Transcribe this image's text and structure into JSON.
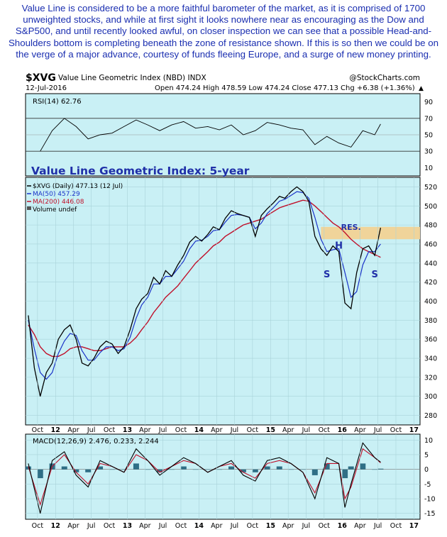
{
  "commentary": "Value Line is considered to be a more faithful barometer of the market, as it is comprised of 1700 unweighted stocks, and while at first sight it looks nowhere near as encouraging as the Dow and S&P500, and until recently looked awful, on closer inspection we can see that a possible Head-and-Shoulders bottom is completing beneath the zone of resistance shown. If this is so then we could be on the verge of a major advance, courtesy of funds fleeing Europe, and a surge of new money printing.",
  "header": {
    "symbol": "$XVG",
    "name": "Value Line Geometric Index (NBD) INDX",
    "credit": "@StockCharts.com",
    "date": "12-Jul-2016",
    "ohlc": "Open 474.24  High 478.59  Low 474.24  Close 477.13  Chg +6.38 (+1.36%)",
    "change_arrow": "▲"
  },
  "colors": {
    "panel_bg": "#c9f0f5",
    "price": "#000000",
    "ma50": "#1a32c8",
    "ma200": "#c0102a",
    "resistance_zone": "#f0d49a",
    "annotation": "#1f2fa8",
    "macd_hist": "#2f6f86"
  },
  "chart_data": [
    {
      "type": "line",
      "label": "RSI(14) 62.76",
      "ylim": [
        0,
        100
      ],
      "yticks": [
        10,
        30,
        50,
        70,
        90
      ],
      "reference_lines": [
        30,
        50,
        70
      ],
      "x": [
        "2011-10",
        "2011-12",
        "2012-02",
        "2012-04",
        "2012-06",
        "2012-08",
        "2012-10",
        "2012-12",
        "2013-02",
        "2013-04",
        "2013-06",
        "2013-08",
        "2013-10",
        "2013-12",
        "2014-02",
        "2014-04",
        "2014-06",
        "2014-08",
        "2014-10",
        "2014-12",
        "2015-02",
        "2015-04",
        "2015-06",
        "2015-08",
        "2015-10",
        "2015-12",
        "2016-02",
        "2016-04",
        "2016-06",
        "2016-07"
      ],
      "values": [
        30,
        55,
        70,
        60,
        45,
        50,
        52,
        60,
        68,
        62,
        55,
        62,
        66,
        58,
        60,
        56,
        62,
        50,
        55,
        65,
        62,
        58,
        56,
        38,
        48,
        40,
        35,
        55,
        50,
        63
      ]
    },
    {
      "type": "line",
      "title": "Value Line Geometric Index: 5-year",
      "legend": [
        "$XVG (Daily) 477.13 (12 Jul)",
        "MA(50) 457.29",
        "MA(200) 446.08",
        "Volume undef"
      ],
      "ylim": [
        270,
        530
      ],
      "yticks": [
        280,
        300,
        320,
        340,
        360,
        380,
        400,
        420,
        440,
        460,
        480,
        500,
        520
      ],
      "xticks": [
        "Oct",
        "12",
        "Apr",
        "Jul",
        "Oct",
        "13",
        "Apr",
        "Jul",
        "Oct",
        "14",
        "Apr",
        "Jul",
        "Oct",
        "15",
        "Apr",
        "Jul",
        "Oct",
        "16",
        "Apr",
        "Jul",
        "Oct",
        "17"
      ],
      "resistance_zone": [
        465,
        478
      ],
      "annotations": [
        {
          "text": "RES.",
          "x": "2016-02",
          "y": 475
        },
        {
          "text": "H",
          "x": "2015-12",
          "y": 455
        },
        {
          "text": "S",
          "x": "2015-10",
          "y": 425
        },
        {
          "text": "S",
          "x": "2016-06",
          "y": 425
        }
      ],
      "x": [
        "2011-08",
        "2011-09",
        "2011-10",
        "2011-11",
        "2011-12",
        "2012-01",
        "2012-02",
        "2012-03",
        "2012-04",
        "2012-05",
        "2012-06",
        "2012-07",
        "2012-08",
        "2012-09",
        "2012-10",
        "2012-11",
        "2012-12",
        "2013-01",
        "2013-02",
        "2013-03",
        "2013-04",
        "2013-05",
        "2013-06",
        "2013-07",
        "2013-08",
        "2013-09",
        "2013-10",
        "2013-11",
        "2013-12",
        "2014-01",
        "2014-02",
        "2014-03",
        "2014-04",
        "2014-05",
        "2014-06",
        "2014-07",
        "2014-08",
        "2014-09",
        "2014-10",
        "2014-11",
        "2014-12",
        "2015-01",
        "2015-02",
        "2015-03",
        "2015-04",
        "2015-05",
        "2015-06",
        "2015-07",
        "2015-08",
        "2015-09",
        "2015-10",
        "2015-11",
        "2015-12",
        "2016-01",
        "2016-02",
        "2016-03",
        "2016-04",
        "2016-05",
        "2016-06",
        "2016-07"
      ],
      "series": [
        {
          "name": "$XVG (Daily) 477.13 (12 Jul)",
          "values": [
            385,
            330,
            300,
            325,
            335,
            360,
            370,
            375,
            360,
            335,
            332,
            340,
            352,
            358,
            355,
            345,
            352,
            370,
            392,
            402,
            408,
            425,
            418,
            432,
            426,
            438,
            448,
            462,
            468,
            463,
            470,
            478,
            475,
            487,
            495,
            492,
            490,
            488,
            468,
            490,
            497,
            503,
            510,
            508,
            515,
            520,
            515,
            505,
            468,
            455,
            448,
            458,
            452,
            398,
            392,
            430,
            455,
            458,
            448,
            477
          ]
        },
        {
          "name": "MA(50) 457.29",
          "values": [
            380,
            350,
            325,
            318,
            325,
            345,
            358,
            366,
            364,
            348,
            338,
            338,
            346,
            352,
            352,
            348,
            350,
            362,
            382,
            396,
            404,
            418,
            418,
            426,
            426,
            434,
            442,
            455,
            463,
            464,
            468,
            474,
            475,
            483,
            490,
            491,
            490,
            488,
            476,
            482,
            492,
            498,
            505,
            507,
            511,
            515,
            514,
            508,
            488,
            465,
            452,
            454,
            455,
            430,
            404,
            410,
            438,
            452,
            452,
            460
          ]
        },
        {
          "name": "MA(200) 446.08",
          "values": [
            375,
            365,
            352,
            345,
            342,
            342,
            345,
            350,
            352,
            352,
            350,
            348,
            348,
            350,
            352,
            352,
            352,
            356,
            362,
            370,
            378,
            388,
            396,
            404,
            410,
            416,
            424,
            432,
            440,
            446,
            452,
            458,
            462,
            468,
            472,
            476,
            480,
            482,
            484,
            486,
            490,
            494,
            498,
            500,
            502,
            504,
            506,
            505,
            500,
            494,
            488,
            482,
            478,
            472,
            465,
            460,
            455,
            452,
            449,
            446
          ]
        }
      ]
    },
    {
      "type": "line",
      "label": "MACD(12,26,9) 2.476, 0.233, 2.244",
      "ylim": [
        -17,
        12
      ],
      "yticks": [
        -15,
        -10,
        -5,
        0,
        5,
        10
      ],
      "xticks": [
        "Oct",
        "12",
        "Apr",
        "Jul",
        "Oct",
        "13",
        "Apr",
        "Jul",
        "Oct",
        "14",
        "Apr",
        "Jul",
        "Oct",
        "15",
        "Apr",
        "Jul",
        "Oct",
        "16",
        "Apr",
        "Jul",
        "Oct",
        "17"
      ],
      "x": [
        "2011-08",
        "2011-10",
        "2011-12",
        "2012-02",
        "2012-04",
        "2012-06",
        "2012-08",
        "2012-10",
        "2012-12",
        "2013-02",
        "2013-04",
        "2013-06",
        "2013-08",
        "2013-10",
        "2013-12",
        "2014-02",
        "2014-04",
        "2014-06",
        "2014-08",
        "2014-10",
        "2014-12",
        "2015-02",
        "2015-04",
        "2015-06",
        "2015-08",
        "2015-10",
        "2015-12",
        "2016-01",
        "2016-02",
        "2016-04",
        "2016-06",
        "2016-07"
      ],
      "series": [
        {
          "name": "MACD",
          "values": [
            2,
            -15,
            3,
            6,
            -2,
            -6,
            3,
            1,
            -1,
            7,
            3,
            -2,
            1,
            4,
            2,
            -1,
            1,
            3,
            -2,
            -4,
            3,
            4,
            2,
            -1,
            -10,
            4,
            2,
            -13,
            -5,
            9,
            4,
            2.476
          ]
        },
        {
          "name": "Signal",
          "values": [
            1,
            -12,
            1,
            5,
            -1,
            -5,
            2,
            1,
            -1,
            5,
            3,
            -1,
            1,
            3,
            2,
            -1,
            1,
            2,
            -1,
            -3,
            2,
            3,
            2,
            -1,
            -8,
            2,
            2,
            -10,
            -6,
            7,
            4,
            2.244
          ]
        },
        {
          "name": "Histogram",
          "values": [
            1,
            -3,
            2,
            1,
            -1,
            -1,
            1,
            0,
            0,
            2,
            0,
            -1,
            0,
            1,
            0,
            0,
            0,
            1,
            -1,
            -1,
            1,
            1,
            0,
            0,
            -2,
            2,
            0,
            -3,
            1,
            2,
            0,
            0.233
          ]
        }
      ]
    }
  ]
}
